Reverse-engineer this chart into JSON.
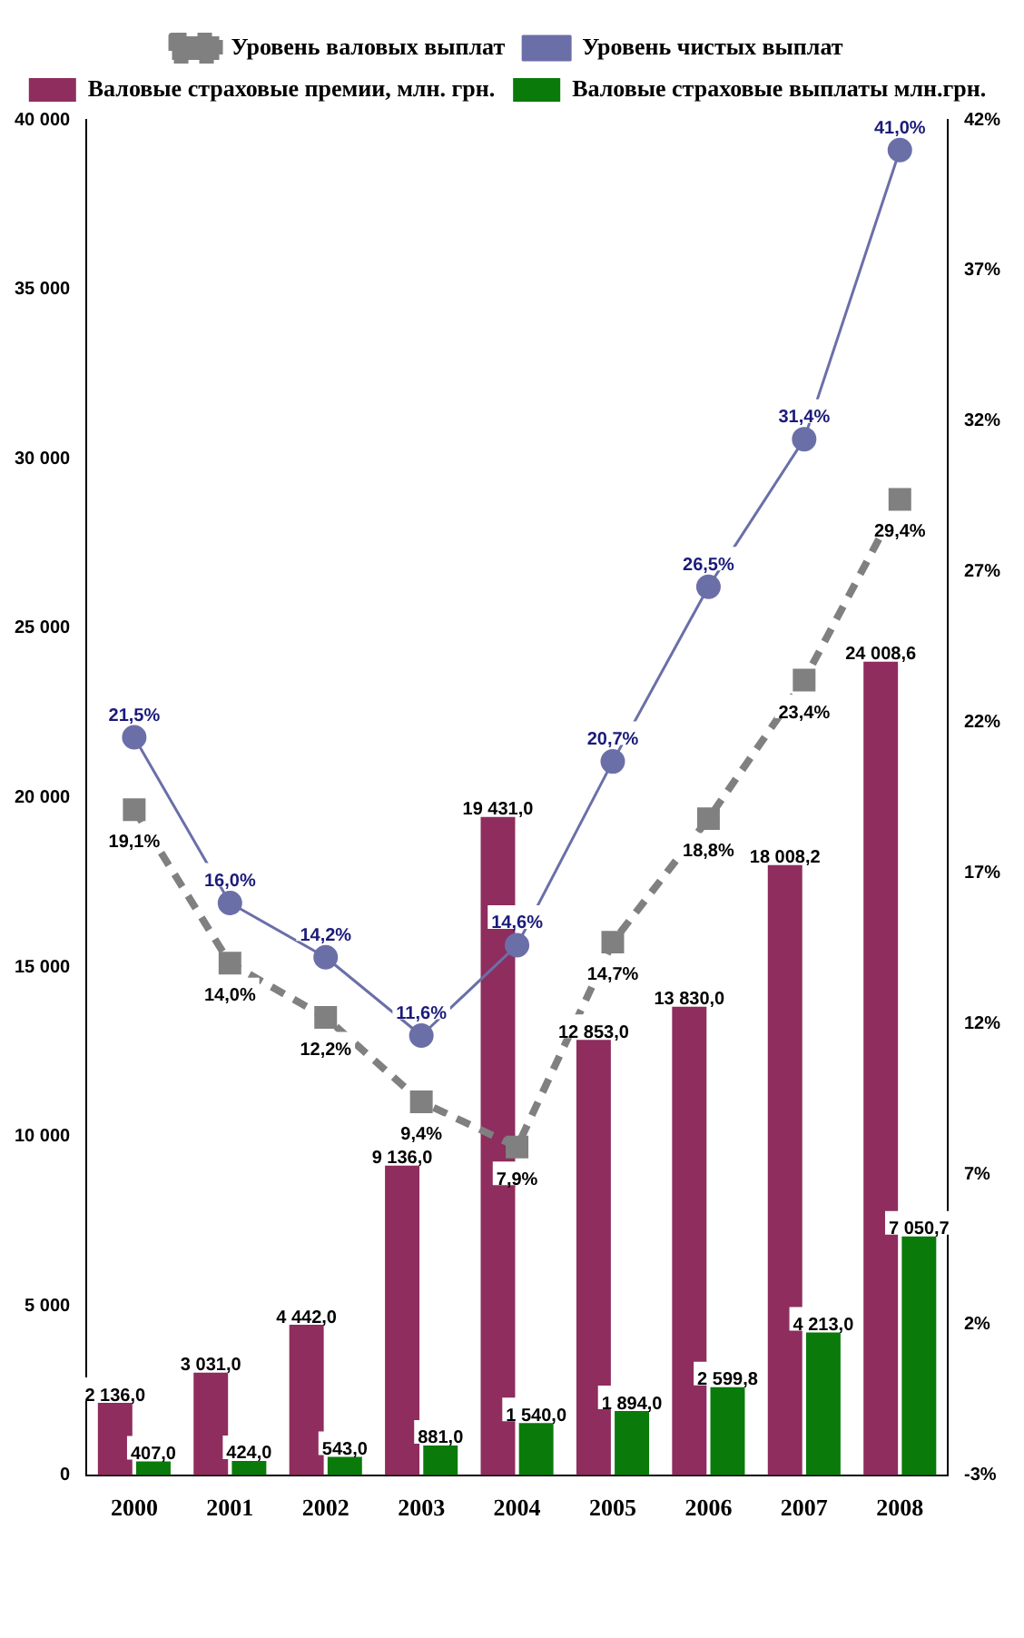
{
  "chart_data": {
    "type": "bar",
    "categories": [
      "2000",
      "2001",
      "2002",
      "2003",
      "2004",
      "2005",
      "2006",
      "2007",
      "2008"
    ],
    "series": [
      {
        "name": "Валовые страховые премии, млн. грн.",
        "color": "#8e2d5e",
        "values": [
          2136,
          3031,
          4442,
          9136,
          19431,
          12853,
          13830,
          18008.2,
          24008.6
        ],
        "value_labels": [
          "2 136,0",
          "3 031,0",
          "4 442,0",
          "9 136,0",
          "19 431,0",
          "12 853,0",
          "13 830,0",
          "18 008,2",
          "24 008,6"
        ]
      },
      {
        "name": "Валовые страховые выплаты млн.грн.",
        "color": "#0a7a0a",
        "values": [
          407,
          424,
          543,
          881,
          1540,
          1894,
          2599.8,
          4213,
          7050.7
        ],
        "value_labels": [
          "407,0",
          "424,0",
          "543,0",
          "881,0",
          "1 540,0",
          "1 894,0",
          "2 599,8",
          "4 213,0",
          "7 050,7"
        ]
      },
      {
        "name": "Уровень валовых выплат",
        "type": "line",
        "axis": "y2",
        "color": "#808080",
        "line_style": "dashed",
        "marker": "square",
        "values": [
          19.1,
          14.0,
          12.2,
          9.4,
          7.9,
          14.7,
          18.8,
          23.4,
          29.4
        ],
        "value_labels": [
          "19,1%",
          "14,0%",
          "12,2%",
          "9,4%",
          "7,9%",
          "14,7%",
          "18,8%",
          "23,4%",
          "29,4%"
        ]
      },
      {
        "name": "Уровень чистых выплат",
        "type": "line",
        "axis": "y2",
        "color": "#6b6fa8",
        "line_style": "solid",
        "marker": "circle",
        "values": [
          21.5,
          16.0,
          14.2,
          11.6,
          14.6,
          20.7,
          26.5,
          31.4,
          41.0
        ],
        "value_labels": [
          "21,5%",
          "16,0%",
          "14,2%",
          "11,6%",
          "14,6%",
          "20,7%",
          "26,5%",
          "31,4%",
          "41,0%"
        ]
      }
    ],
    "ylim": [
      0,
      40000
    ],
    "yticks": [
      {
        "value": 0,
        "label": "0"
      },
      {
        "value": 5000,
        "label": "5 000"
      },
      {
        "value": 10000,
        "label": "10 000"
      },
      {
        "value": 15000,
        "label": "15 000"
      },
      {
        "value": 20000,
        "label": "20 000"
      },
      {
        "value": 25000,
        "label": "25 000"
      },
      {
        "value": 30000,
        "label": "30 000"
      },
      {
        "value": 35000,
        "label": "35 000"
      },
      {
        "value": 40000,
        "label": "40 000"
      }
    ],
    "y2lim": [
      -3,
      42
    ],
    "y2ticks": [
      {
        "value": -3,
        "label": "-3%"
      },
      {
        "value": 2,
        "label": "2%"
      },
      {
        "value": 7,
        "label": "7%"
      },
      {
        "value": 12,
        "label": "12%"
      },
      {
        "value": 17,
        "label": "17%"
      },
      {
        "value": 22,
        "label": "22%"
      },
      {
        "value": 27,
        "label": "27%"
      },
      {
        "value": 32,
        "label": "32%"
      },
      {
        "value": 37,
        "label": "37%"
      },
      {
        "value": 42,
        "label": "42%"
      }
    ],
    "legend": "top",
    "grid": false
  }
}
